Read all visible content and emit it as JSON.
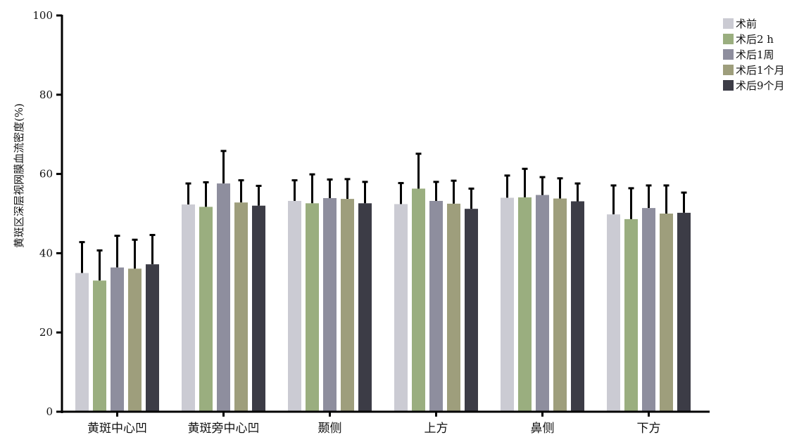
{
  "chart_data": {
    "type": "bar",
    "title": "",
    "xlabel": "",
    "ylabel": "黄斑区深层视网膜血流密度(%)",
    "ylim": [
      0,
      100
    ],
    "yticks": [
      0,
      20,
      40,
      60,
      80,
      100
    ],
    "categories": [
      "黄斑中心凹",
      "黄斑旁中心凹",
      "颞侧",
      "上方",
      "鼻侧",
      "下方"
    ],
    "series": [
      {
        "name": "术前",
        "color": "#cbcbd3",
        "values": [
          35.0,
          52.3,
          53.2,
          52.4,
          54.0,
          49.8
        ],
        "errors": [
          7.8,
          5.3,
          5.2,
          5.3,
          5.6,
          7.3
        ]
      },
      {
        "name": "术后2 h",
        "color": "#9aae7f",
        "values": [
          33.1,
          51.7,
          52.6,
          56.3,
          54.1,
          48.6
        ],
        "errors": [
          7.6,
          6.2,
          7.3,
          8.8,
          7.2,
          7.8
        ]
      },
      {
        "name": "术后1周",
        "color": "#8e8e9e",
        "values": [
          36.4,
          57.6,
          53.9,
          53.2,
          54.7,
          51.4
        ],
        "errors": [
          8.0,
          8.2,
          4.7,
          4.8,
          4.5,
          5.7
        ]
      },
      {
        "name": "术后1个月",
        "color": "#9e9e7c",
        "values": [
          36.1,
          52.8,
          53.7,
          52.5,
          53.8,
          50.0
        ],
        "errors": [
          7.3,
          5.6,
          5.0,
          5.8,
          5.1,
          7.1
        ]
      },
      {
        "name": "术后9个月",
        "color": "#3c3c46",
        "values": [
          37.2,
          52.0,
          52.6,
          51.2,
          53.1,
          50.2
        ],
        "errors": [
          7.4,
          5.0,
          5.4,
          5.1,
          4.5,
          5.1
        ]
      }
    ],
    "legend_position": "top-right",
    "grid": false,
    "error_bars": "positive"
  }
}
